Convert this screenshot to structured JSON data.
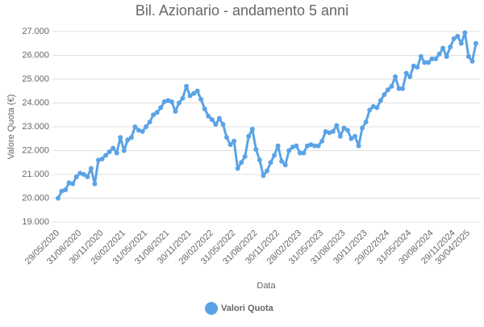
{
  "chart_data": {
    "type": "line",
    "title": "Bil. Azionario - andamento 5 anni",
    "x_label": "Data",
    "y_label": "Valore Quota (€)",
    "categories": [
      "29/05/2020",
      null,
      null,
      null,
      null,
      null,
      "31/08/2020",
      null,
      null,
      null,
      null,
      null,
      "30/11/2020",
      null,
      null,
      null,
      null,
      null,
      "26/02/2021",
      null,
      null,
      null,
      null,
      null,
      "31/05/2021",
      null,
      null,
      null,
      null,
      null,
      "31/08/2021",
      null,
      null,
      null,
      null,
      null,
      "30/11/2021",
      null,
      null,
      null,
      null,
      null,
      "28/02/2022",
      null,
      null,
      null,
      null,
      null,
      "31/05/2022",
      null,
      null,
      null,
      null,
      null,
      "31/08/2022",
      null,
      null,
      null,
      null,
      null,
      "30/11/2022",
      null,
      null,
      null,
      null,
      null,
      "28/02/2023",
      null,
      null,
      null,
      null,
      null,
      "31/05/2023",
      null,
      null,
      null,
      null,
      null,
      "31/08/2023",
      null,
      null,
      null,
      null,
      null,
      "30/11/2023",
      null,
      null,
      null,
      null,
      null,
      "29/02/2024",
      null,
      null,
      null,
      null,
      null,
      "31/05/2024",
      null,
      null,
      null,
      null,
      null,
      "30/08/2024",
      null,
      null,
      null,
      null,
      null,
      "29/11/2024",
      null,
      null,
      null,
      "30/04/2025",
      null,
      null
    ],
    "series": [
      {
        "name": "Valori Quota",
        "color": "#5ba3e6",
        "values": [
          20000,
          20300,
          20350,
          20650,
          20600,
          20900,
          21050,
          21000,
          20900,
          21250,
          20600,
          21600,
          21650,
          21800,
          21950,
          22100,
          21900,
          22550,
          22000,
          22450,
          22550,
          23000,
          22850,
          22800,
          23000,
          23200,
          23500,
          23600,
          23800,
          24050,
          24100,
          24050,
          23650,
          24000,
          24200,
          24700,
          24300,
          24400,
          24500,
          24150,
          23750,
          23450,
          23300,
          23100,
          23350,
          23100,
          22550,
          22250,
          22400,
          21250,
          21500,
          21750,
          22600,
          22900,
          22050,
          21600,
          20950,
          21150,
          21500,
          21800,
          22200,
          21550,
          21400,
          22000,
          22150,
          22200,
          21900,
          21900,
          22200,
          22250,
          22200,
          22200,
          22400,
          22800,
          22750,
          22800,
          23050,
          22600,
          22950,
          22850,
          22500,
          22600,
          22200,
          22950,
          23200,
          23700,
          23850,
          23800,
          24100,
          24350,
          24550,
          24700,
          25100,
          24600,
          24600,
          25250,
          25100,
          25550,
          25500,
          25950,
          25700,
          25700,
          25850,
          25850,
          26050,
          26300,
          25950,
          26350,
          26700,
          26800,
          26500,
          26950,
          25950,
          25750,
          26500
        ]
      }
    ],
    "ylim": [
      19000,
      27000
    ],
    "yticks": [
      {
        "value": 19000,
        "label": "19.000"
      },
      {
        "value": 20000,
        "label": "20.000"
      },
      {
        "value": 21000,
        "label": "21.000"
      },
      {
        "value": 22000,
        "label": "22.000"
      },
      {
        "value": 23000,
        "label": "23.000"
      },
      {
        "value": 24000,
        "label": "24.000"
      },
      {
        "value": 25000,
        "label": "25.000"
      },
      {
        "value": 26000,
        "label": "26.000"
      },
      {
        "value": 27000,
        "label": "27.000"
      }
    ],
    "grid": true
  }
}
